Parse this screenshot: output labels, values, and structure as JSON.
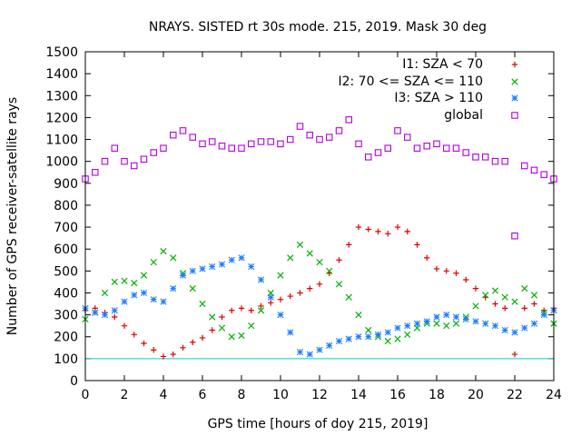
{
  "chart_data": {
    "type": "scatter",
    "title": "NRAYS. SISTED rt 30s mode. 215, 2019. Mask 30 deg",
    "xlabel": "GPS time [hours of doy 215, 2019]",
    "ylabel": "Number of GPS receiver-satellite rays",
    "xlim": [
      0,
      24
    ],
    "ylim": [
      0,
      1500
    ],
    "xticks": [
      "0",
      "2",
      "4",
      "6",
      "8",
      "10",
      "12",
      "14",
      "16",
      "18",
      "20",
      "22",
      "24"
    ],
    "yticks": [
      "0",
      "100",
      "200",
      "300",
      "400",
      "500",
      "600",
      "700",
      "800",
      "900",
      "1000",
      "1100",
      "1200",
      "1300",
      "1400",
      "1500"
    ],
    "reference_line": {
      "y": 100,
      "color": "#00cccc"
    },
    "legend_position": "top-right",
    "series": [
      {
        "name": "I1: SZA < 70",
        "marker": "plus",
        "color": "#e00000",
        "x": [
          0,
          0.5,
          1,
          1.5,
          2,
          2.5,
          3,
          3.5,
          4,
          4.5,
          5,
          5.5,
          6,
          6.5,
          7,
          7.5,
          8,
          8.5,
          9,
          9.5,
          10,
          10.5,
          11,
          11.5,
          12,
          12.5,
          13,
          13.5,
          14,
          14.5,
          15,
          15.5,
          16,
          16.5,
          17,
          17.5,
          18,
          18.5,
          19,
          19.5,
          20,
          20.5,
          21,
          21.5,
          22,
          22.5,
          23,
          23.5,
          24
        ],
        "values": [
          320,
          330,
          310,
          290,
          250,
          210,
          170,
          140,
          110,
          120,
          150,
          175,
          195,
          230,
          290,
          320,
          330,
          320,
          340,
          355,
          370,
          385,
          400,
          420,
          440,
          490,
          550,
          620,
          700,
          690,
          680,
          670,
          700,
          680,
          620,
          560,
          510,
          500,
          490,
          460,
          420,
          380,
          350,
          330,
          120,
          330,
          350,
          320,
          330
        ]
      },
      {
        "name": "I2: 70 <= SZA <= 110",
        "marker": "cross",
        "color": "#00b000",
        "x": [
          0,
          0.5,
          1,
          1.5,
          2,
          2.5,
          3,
          3.5,
          4,
          4.5,
          5,
          5.5,
          6,
          6.5,
          7,
          7.5,
          8,
          8.5,
          9,
          9.5,
          10,
          10.5,
          11,
          11.5,
          12,
          12.5,
          13,
          13.5,
          14,
          14.5,
          15,
          15.5,
          16,
          16.5,
          17,
          17.5,
          18,
          18.5,
          19,
          19.5,
          20,
          20.5,
          21,
          21.5,
          22,
          22.5,
          23,
          23.5,
          24
        ],
        "values": [
          280,
          310,
          400,
          450,
          455,
          445,
          480,
          540,
          590,
          560,
          490,
          420,
          350,
          290,
          240,
          200,
          205,
          250,
          320,
          400,
          480,
          560,
          620,
          580,
          540,
          500,
          440,
          380,
          300,
          230,
          200,
          180,
          190,
          210,
          240,
          260,
          260,
          250,
          260,
          290,
          340,
          390,
          410,
          380,
          360,
          420,
          390,
          310,
          260
        ]
      },
      {
        "name": "I3: SZA > 110",
        "marker": "star",
        "color": "#1e7cff",
        "x": [
          0,
          0.5,
          1,
          1.5,
          2,
          2.5,
          3,
          3.5,
          4,
          4.5,
          5,
          5.5,
          6,
          6.5,
          7,
          7.5,
          8,
          8.5,
          9,
          9.5,
          10,
          10.5,
          11,
          11.5,
          12,
          12.5,
          13,
          13.5,
          14,
          14.5,
          15,
          15.5,
          16,
          16.5,
          17,
          17.5,
          18,
          18.5,
          19,
          19.5,
          20,
          20.5,
          21,
          21.5,
          22,
          22.5,
          23,
          23.5,
          24
        ],
        "values": [
          330,
          310,
          300,
          320,
          360,
          390,
          400,
          370,
          360,
          420,
          480,
          500,
          510,
          520,
          530,
          550,
          560,
          520,
          460,
          380,
          300,
          220,
          130,
          120,
          140,
          160,
          180,
          190,
          200,
          200,
          210,
          220,
          240,
          250,
          260,
          270,
          290,
          300,
          290,
          280,
          270,
          260,
          250,
          230,
          220,
          240,
          260,
          300,
          320
        ]
      },
      {
        "name": "global",
        "marker": "square",
        "color": "#b000e0",
        "x": [
          0,
          0.5,
          1,
          1.5,
          2,
          2.5,
          3,
          3.5,
          4,
          4.5,
          5,
          5.5,
          6,
          6.5,
          7,
          7.5,
          8,
          8.5,
          9,
          9.5,
          10,
          10.5,
          11,
          11.5,
          12,
          12.5,
          13,
          13.5,
          14,
          14.5,
          15,
          15.5,
          16,
          16.5,
          17,
          17.5,
          18,
          18.5,
          19,
          19.5,
          20,
          20.5,
          21,
          21.5,
          22,
          22.5,
          23,
          23.5,
          24
        ],
        "values": [
          920,
          950,
          1000,
          1060,
          1000,
          980,
          1010,
          1040,
          1060,
          1120,
          1140,
          1110,
          1080,
          1090,
          1070,
          1060,
          1060,
          1080,
          1090,
          1090,
          1080,
          1100,
          1160,
          1120,
          1100,
          1110,
          1140,
          1190,
          1080,
          1020,
          1040,
          1060,
          1140,
          1110,
          1060,
          1070,
          1080,
          1060,
          1060,
          1040,
          1020,
          1020,
          1000,
          1000,
          660,
          980,
          960,
          940,
          920
        ]
      }
    ]
  }
}
